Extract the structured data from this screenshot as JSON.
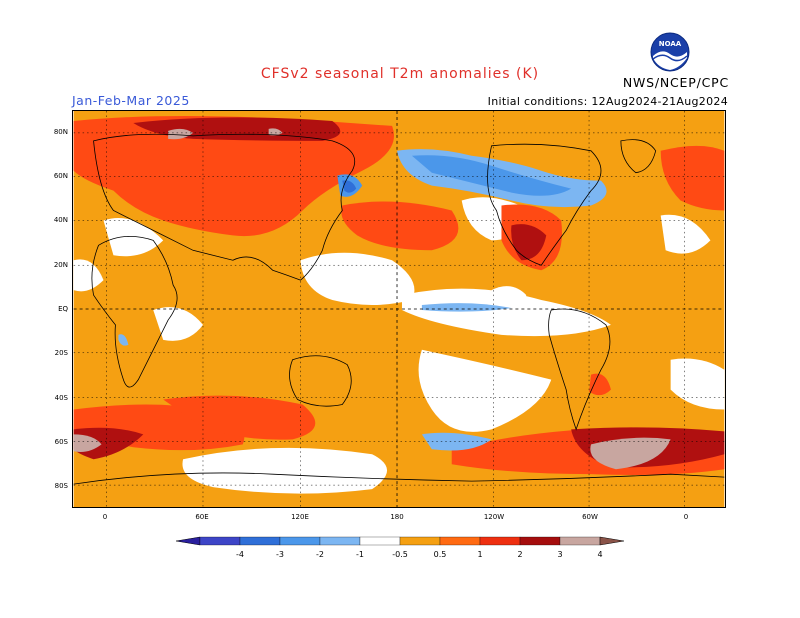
{
  "header": {
    "title": "CFSv2 seasonal T2m anomalies (K)",
    "period": "Jan-Feb-Mar 2025",
    "initial_conditions": "Initial conditions: 12Aug2024-21Aug2024",
    "agency": "NWS/NCEP/CPC",
    "logo_text": "NOAA"
  },
  "axes": {
    "lat_labels": [
      "80N",
      "60N",
      "40N",
      "20N",
      "EQ",
      "20S",
      "40S",
      "60S",
      "80S"
    ],
    "lon_labels": [
      "0",
      "60E",
      "120E",
      "180",
      "120W",
      "60W",
      "0"
    ]
  },
  "legend": {
    "tick_labels": [
      "-4",
      "-3",
      "-2",
      "-1",
      "-0.5",
      "0.5",
      "1",
      "2",
      "3",
      "4"
    ],
    "colors": [
      "#2a1f9e",
      "#3d45c7",
      "#2f6fd8",
      "#4b97ea",
      "#7cb6f2",
      "#ffffff",
      "#f5a012",
      "#ff6a12",
      "#ee2f10",
      "#a50d0d",
      "#c8a6a0",
      "#8a5348"
    ]
  }
}
